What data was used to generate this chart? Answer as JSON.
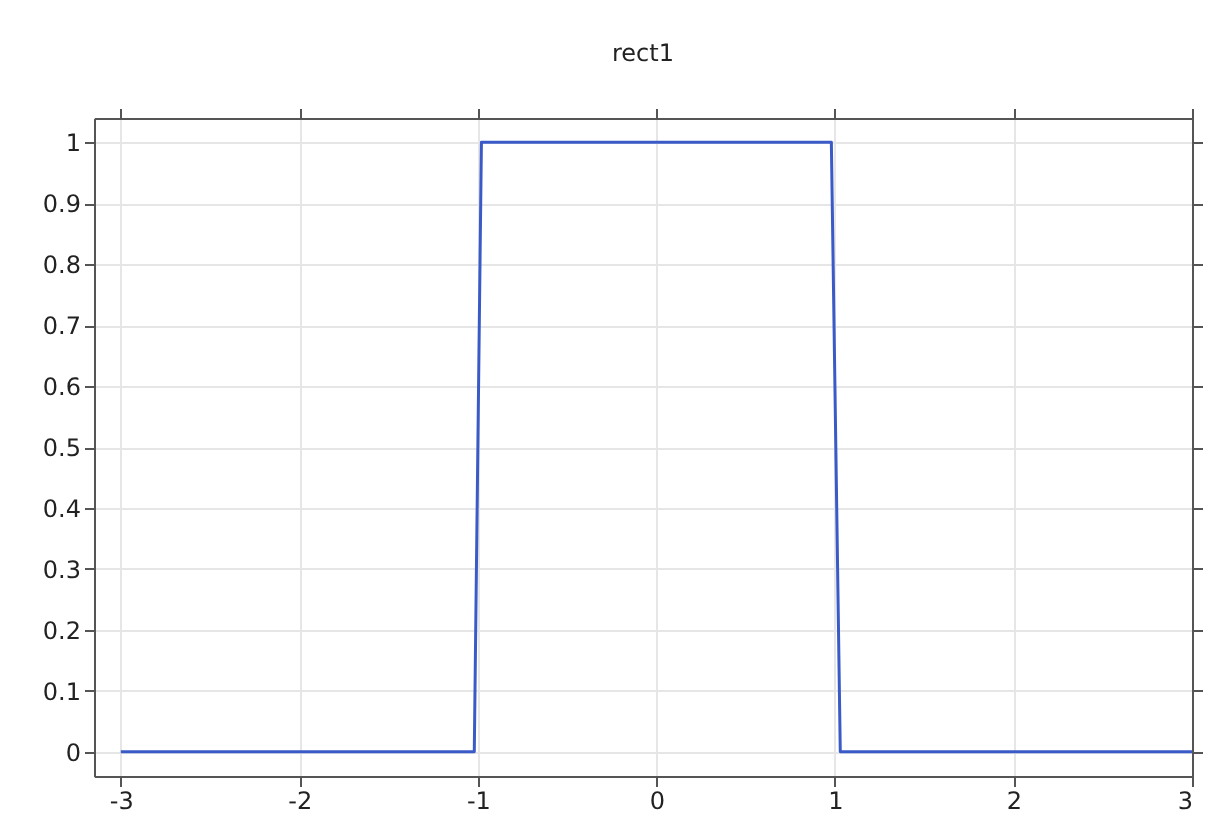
{
  "chart_data": {
    "type": "line",
    "title": "rect1",
    "x": [
      -3,
      -1.02,
      -0.98,
      0.98,
      1.03,
      3
    ],
    "series": [
      {
        "color": "#3a5bc7",
        "values": [
          0,
          0,
          1,
          1,
          0,
          0
        ]
      }
    ],
    "xlim": [
      -3.15,
      3
    ],
    "xticks": [
      -3,
      -2,
      -1,
      0,
      1,
      2,
      3
    ],
    "ylim": [
      -0.04,
      1.04
    ],
    "yticks": [
      0,
      0.1,
      0.2,
      0.3,
      0.4,
      0.5,
      0.6,
      0.7,
      0.8,
      0.9,
      1
    ],
    "grid": true,
    "marker": "none",
    "line_style": "solid"
  }
}
